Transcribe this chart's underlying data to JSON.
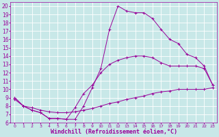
{
  "xlabel": "Windchill (Refroidissement éolien,°C)",
  "bg_color": "#c8e8e8",
  "grid_color": "#ffffff",
  "line_color": "#990099",
  "xlim": [
    -0.5,
    23.5
  ],
  "ylim": [
    6,
    20.5
  ],
  "xticks": [
    0,
    1,
    2,
    3,
    4,
    5,
    6,
    7,
    8,
    9,
    10,
    11,
    12,
    13,
    14,
    15,
    16,
    17,
    18,
    19,
    20,
    21,
    22,
    23
  ],
  "yticks": [
    6,
    7,
    8,
    9,
    10,
    11,
    12,
    13,
    14,
    15,
    16,
    17,
    18,
    19,
    20
  ],
  "series1_x": [
    0,
    1,
    2,
    3,
    4,
    5,
    6,
    7,
    8,
    9,
    10,
    11,
    12,
    13,
    14,
    15,
    16,
    17,
    18,
    19,
    20,
    21,
    22,
    23
  ],
  "series1_y": [
    9.0,
    8.0,
    7.5,
    7.2,
    6.5,
    6.5,
    6.4,
    6.4,
    8.0,
    10.2,
    12.5,
    17.2,
    20.0,
    19.4,
    19.2,
    19.2,
    18.5,
    17.2,
    16.0,
    15.5,
    14.2,
    13.8,
    12.8,
    10.5
  ],
  "series2_x": [
    0,
    1,
    2,
    3,
    4,
    5,
    6,
    7,
    8,
    9,
    10,
    11,
    12,
    13,
    14,
    15,
    16,
    17,
    18,
    19,
    20,
    21,
    22,
    23
  ],
  "series2_y": [
    9.0,
    8.0,
    7.5,
    7.2,
    6.5,
    6.5,
    6.4,
    7.8,
    9.5,
    10.5,
    12.0,
    13.0,
    13.5,
    13.8,
    14.0,
    14.0,
    13.8,
    13.2,
    12.8,
    12.8,
    12.8,
    12.8,
    12.5,
    10.5
  ],
  "series3_x": [
    0,
    1,
    2,
    3,
    4,
    5,
    6,
    7,
    8,
    9,
    10,
    11,
    12,
    13,
    14,
    15,
    16,
    17,
    18,
    19,
    20,
    21,
    22,
    23
  ],
  "series3_y": [
    8.8,
    8.0,
    7.8,
    7.5,
    7.3,
    7.2,
    7.2,
    7.3,
    7.5,
    7.7,
    8.0,
    8.3,
    8.5,
    8.8,
    9.0,
    9.2,
    9.5,
    9.7,
    9.8,
    10.0,
    10.0,
    10.0,
    10.0,
    10.2
  ],
  "xlabel_fontsize": 6,
  "tick_fontsize": 5.5
}
